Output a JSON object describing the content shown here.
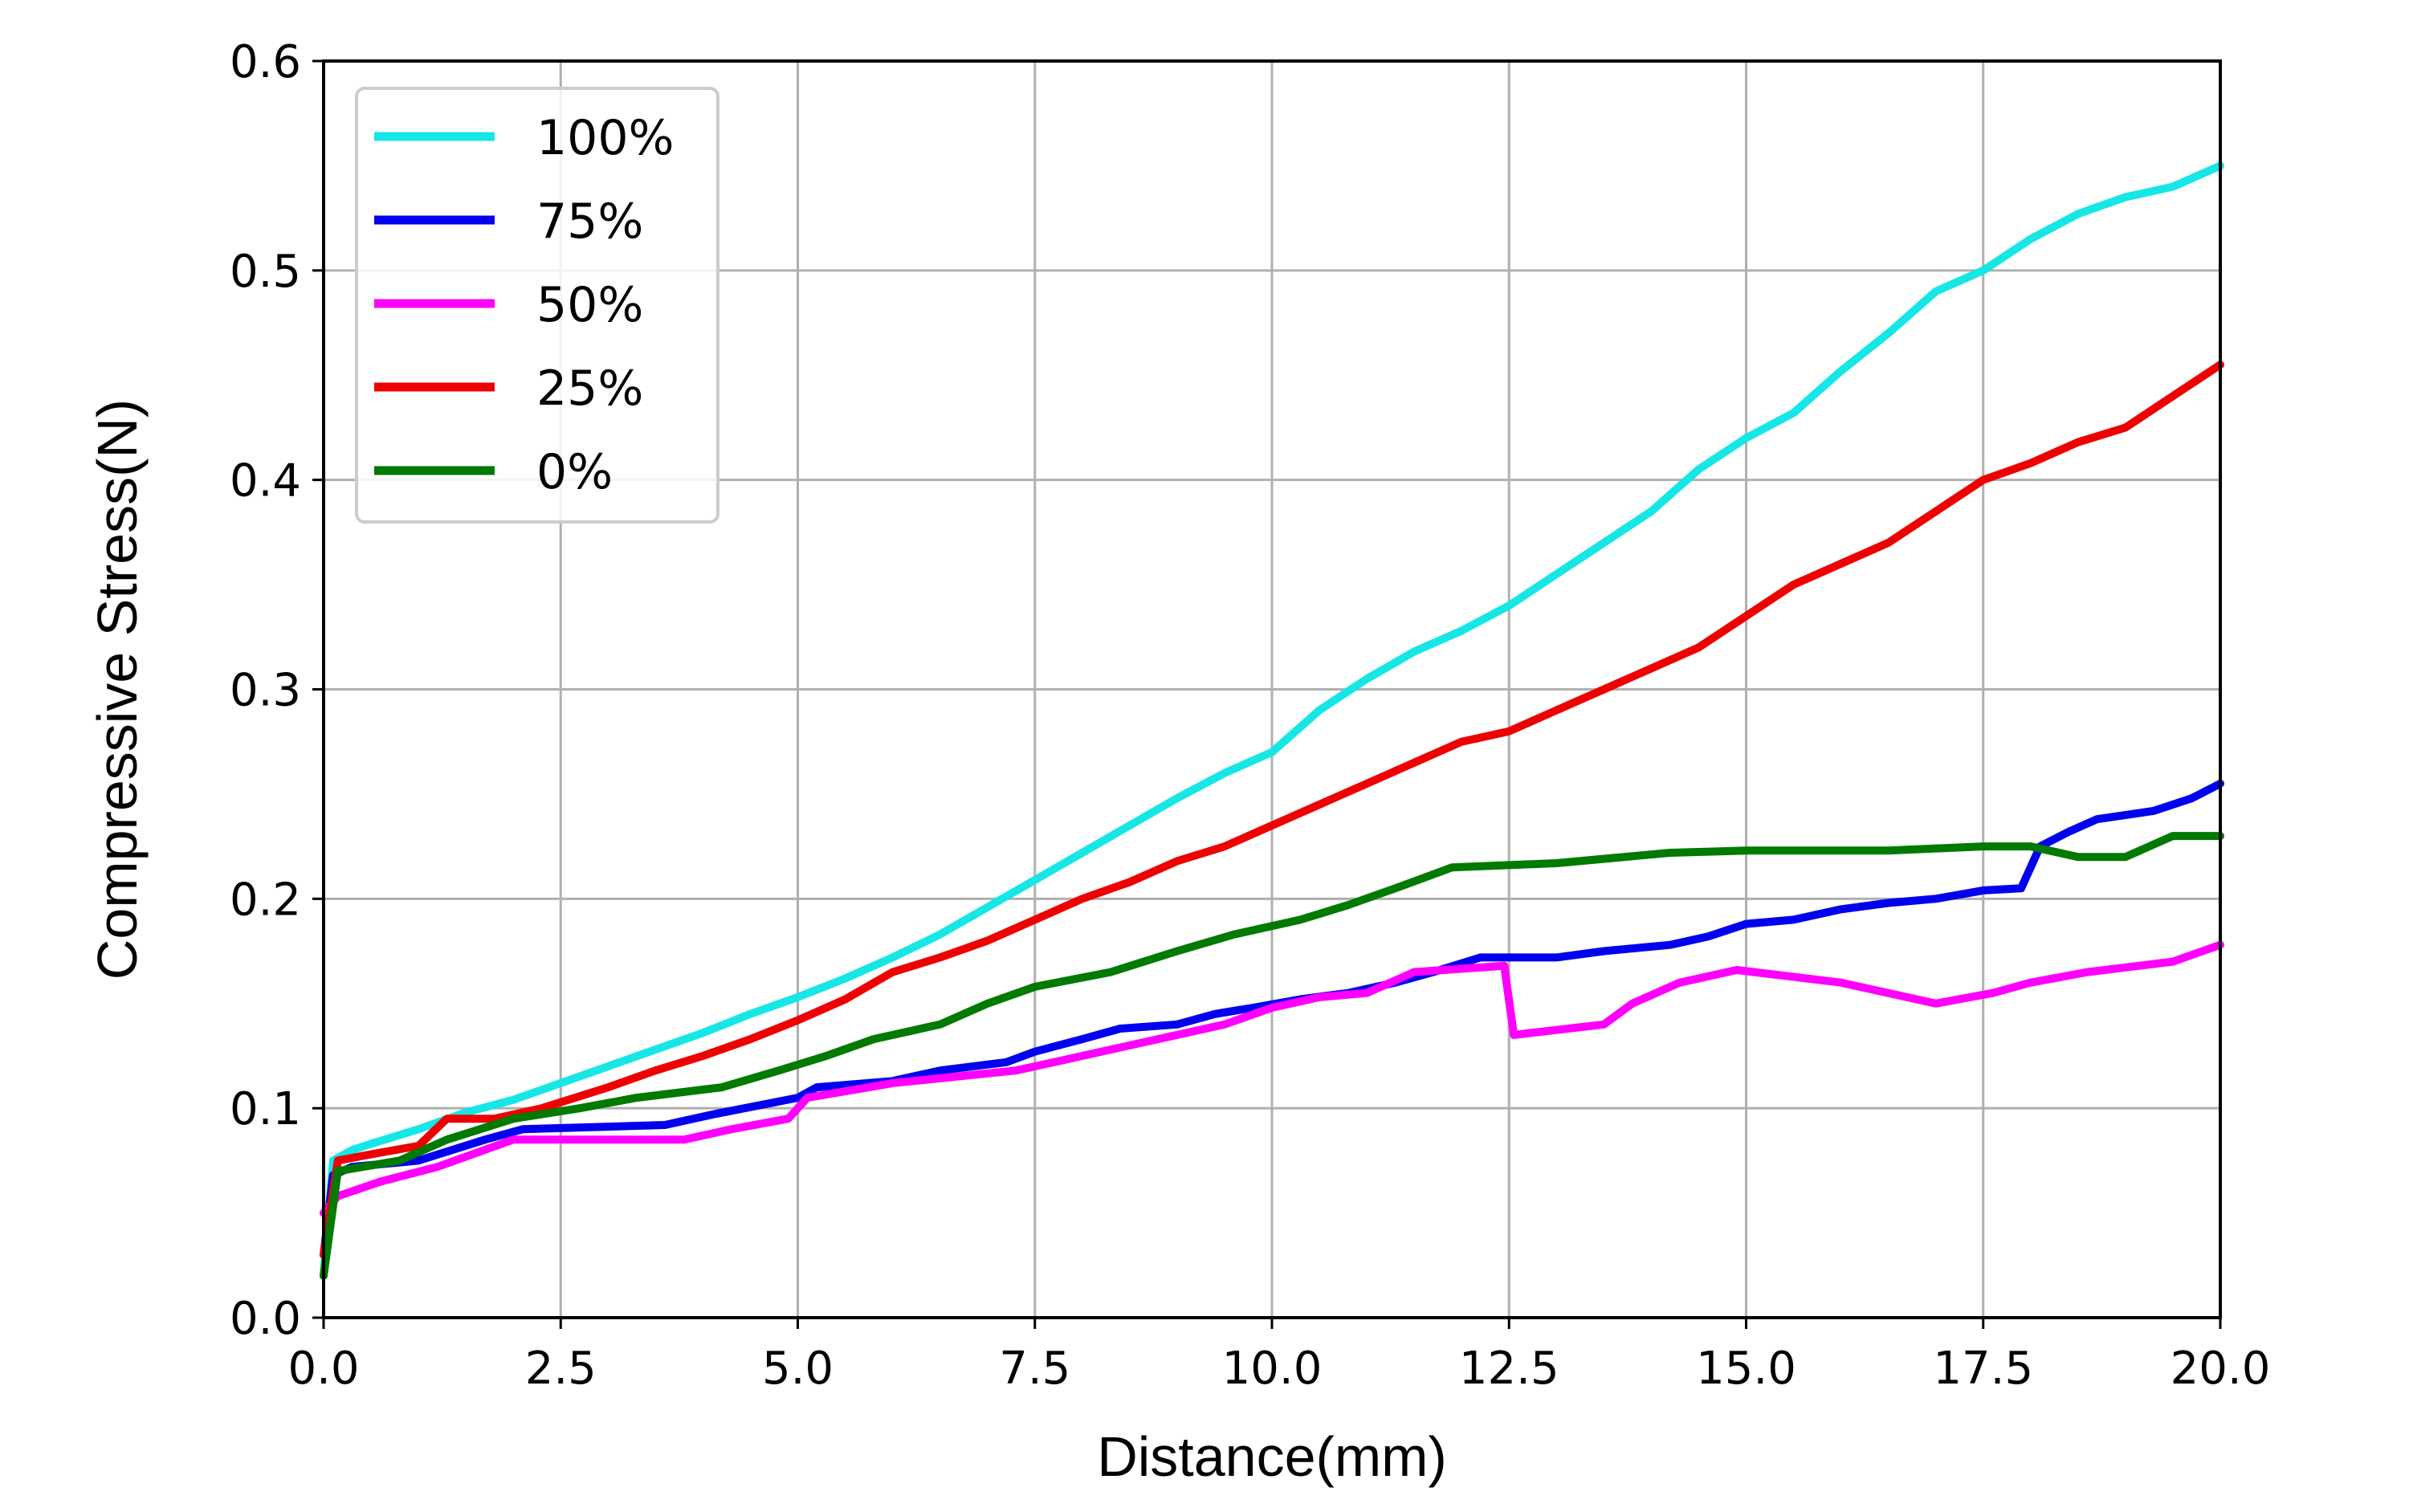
{
  "chart_data": {
    "type": "line",
    "title": "",
    "xlabel": "Distance(mm)",
    "ylabel": "Compressive Stress(N)",
    "xlim": [
      0,
      20
    ],
    "ylim": [
      0,
      0.6
    ],
    "x_ticks": [
      "0.0",
      "2.5",
      "5.0",
      "7.5",
      "10.0",
      "12.5",
      "15.0",
      "17.5",
      "20.0"
    ],
    "y_ticks": [
      "0.0",
      "0.1",
      "0.2",
      "0.3",
      "0.4",
      "0.5",
      "0.6"
    ],
    "grid": true,
    "legend_position": "top-left",
    "series": [
      {
        "name": "100%",
        "color": "#17e6e6",
        "x": [
          0,
          0.1,
          0.3,
          0.5,
          1.0,
          1.5,
          2.0,
          2.5,
          3.0,
          3.5,
          4.0,
          4.5,
          5.0,
          5.5,
          6.0,
          6.5,
          7.0,
          7.5,
          8.0,
          8.5,
          9.0,
          9.5,
          10.0,
          10.5,
          11.0,
          11.5,
          12.0,
          12.5,
          13.0,
          13.5,
          14.0,
          14.5,
          15.0,
          15.5,
          16.0,
          16.5,
          17.0,
          17.5,
          18.0,
          18.5,
          19.0,
          19.5,
          20.0
        ],
        "y": [
          0.02,
          0.075,
          0.08,
          0.083,
          0.09,
          0.098,
          0.104,
          0.112,
          0.12,
          0.128,
          0.136,
          0.145,
          0.153,
          0.162,
          0.172,
          0.183,
          0.196,
          0.209,
          0.222,
          0.235,
          0.248,
          0.26,
          0.27,
          0.29,
          0.305,
          0.318,
          0.328,
          0.34,
          0.355,
          0.37,
          0.385,
          0.405,
          0.42,
          0.432,
          0.452,
          0.47,
          0.49,
          0.5,
          0.515,
          0.527,
          0.535,
          0.54,
          0.55
        ]
      },
      {
        "name": "75%",
        "color": "#0000ee",
        "x": [
          0,
          0.1,
          0.3,
          1.0,
          1.7,
          2.1,
          3.6,
          4.1,
          5.0,
          5.2,
          6.0,
          6.5,
          7.2,
          7.5,
          8.0,
          8.4,
          9.0,
          9.4,
          9.8,
          10.3,
          10.8,
          11.3,
          11.7,
          12.2,
          13.0,
          13.5,
          14.2,
          14.6,
          15.0,
          15.5,
          16.0,
          16.5,
          17.0,
          17.5,
          17.9,
          18.1,
          18.4,
          18.7,
          19.3,
          19.7,
          20.0
        ],
        "y": [
          0.03,
          0.068,
          0.072,
          0.075,
          0.085,
          0.09,
          0.092,
          0.097,
          0.105,
          0.11,
          0.113,
          0.118,
          0.122,
          0.127,
          0.133,
          0.138,
          0.14,
          0.145,
          0.148,
          0.152,
          0.155,
          0.16,
          0.165,
          0.172,
          0.172,
          0.175,
          0.178,
          0.182,
          0.188,
          0.19,
          0.195,
          0.198,
          0.2,
          0.204,
          0.205,
          0.225,
          0.232,
          0.238,
          0.242,
          0.248,
          0.255
        ]
      },
      {
        "name": "50%",
        "color": "#ff00ff",
        "x": [
          0,
          0.15,
          0.6,
          1.2,
          2.0,
          3.8,
          4.3,
          4.9,
          5.1,
          6.0,
          7.3,
          7.8,
          8.3,
          9.0,
          9.5,
          10.0,
          10.5,
          11.0,
          11.5,
          12.45,
          12.55,
          13.5,
          13.8,
          14.3,
          14.9,
          16.0,
          17.0,
          17.6,
          18.0,
          18.6,
          19.5,
          20.0
        ],
        "y": [
          0.05,
          0.058,
          0.065,
          0.072,
          0.085,
          0.085,
          0.09,
          0.095,
          0.105,
          0.112,
          0.118,
          0.123,
          0.128,
          0.135,
          0.14,
          0.148,
          0.153,
          0.155,
          0.165,
          0.168,
          0.135,
          0.14,
          0.15,
          0.16,
          0.166,
          0.16,
          0.15,
          0.155,
          0.16,
          0.165,
          0.17,
          0.178
        ]
      },
      {
        "name": "25%",
        "color": "#ee0000",
        "x": [
          0,
          0.15,
          0.5,
          1.0,
          1.3,
          1.8,
          2.3,
          3.0,
          3.5,
          4.0,
          4.5,
          5.0,
          5.5,
          6.0,
          6.5,
          7.0,
          7.5,
          8.0,
          8.5,
          9.0,
          9.5,
          10.0,
          10.5,
          11.0,
          11.5,
          12.0,
          12.5,
          13.0,
          13.5,
          14.0,
          14.5,
          15.0,
          15.5,
          16.0,
          16.5,
          17.0,
          17.5,
          18.0,
          18.5,
          19.0,
          19.5,
          20.0
        ],
        "y": [
          0.03,
          0.075,
          0.078,
          0.082,
          0.095,
          0.095,
          0.1,
          0.11,
          0.118,
          0.125,
          0.133,
          0.142,
          0.152,
          0.165,
          0.172,
          0.18,
          0.19,
          0.2,
          0.208,
          0.218,
          0.225,
          0.235,
          0.245,
          0.255,
          0.265,
          0.275,
          0.28,
          0.29,
          0.3,
          0.31,
          0.32,
          0.335,
          0.35,
          0.36,
          0.37,
          0.385,
          0.4,
          0.408,
          0.418,
          0.425,
          0.44,
          0.455
        ]
      },
      {
        "name": "0%",
        "color": "#007a00",
        "x": [
          0,
          0.15,
          0.8,
          1.3,
          2.0,
          2.7,
          3.3,
          4.2,
          4.8,
          5.3,
          5.8,
          6.5,
          7.0,
          7.5,
          8.3,
          9.0,
          9.6,
          10.3,
          10.8,
          11.3,
          11.9,
          13.0,
          14.2,
          15.0,
          16.5,
          17.5,
          18.0,
          18.5,
          19.0,
          19.5,
          20.0
        ],
        "y": [
          0.02,
          0.07,
          0.075,
          0.085,
          0.095,
          0.1,
          0.105,
          0.11,
          0.118,
          0.125,
          0.133,
          0.14,
          0.15,
          0.158,
          0.165,
          0.175,
          0.183,
          0.19,
          0.197,
          0.205,
          0.215,
          0.217,
          0.222,
          0.223,
          0.223,
          0.225,
          0.225,
          0.22,
          0.22,
          0.23,
          0.23
        ]
      }
    ]
  }
}
